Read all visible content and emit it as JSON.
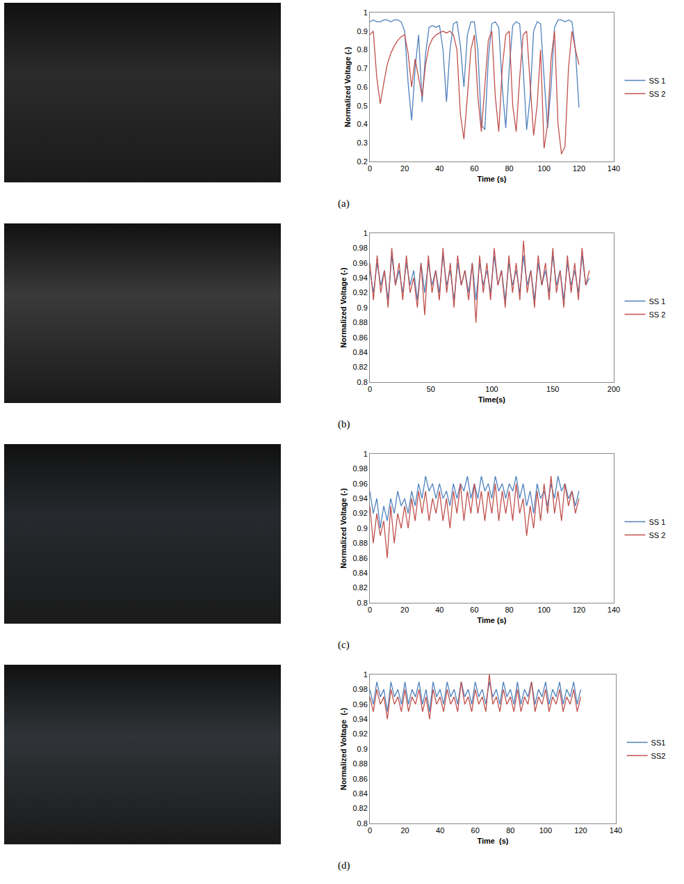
{
  "chart_data": [
    {
      "type": "line",
      "panel_label": "(a)",
      "x_label": "Time (s)",
      "y_label": "Normalized Voltage (-)",
      "legend": "right",
      "grid": false,
      "xlim": [
        0,
        140
      ],
      "xticks": [
        0,
        20,
        40,
        60,
        80,
        100,
        120,
        140
      ],
      "ylim": [
        0.2,
        1
      ],
      "yticks": [
        0.2,
        0.3,
        0.4,
        0.5,
        0.6,
        0.7,
        0.8,
        0.9,
        1
      ],
      "x": [
        0,
        2,
        4,
        6,
        8,
        10,
        12,
        14,
        16,
        18,
        20,
        22,
        24,
        26,
        28,
        30,
        32,
        34,
        36,
        38,
        40,
        42,
        44,
        46,
        48,
        50,
        52,
        54,
        56,
        58,
        60,
        62,
        64,
        66,
        68,
        70,
        72,
        74,
        76,
        78,
        80,
        82,
        84,
        86,
        88,
        90,
        92,
        94,
        96,
        98,
        100,
        102,
        104,
        106,
        108,
        110,
        112,
        114,
        116,
        118,
        120
      ],
      "series": [
        {
          "name": "SS 1",
          "color": "#4f81bd",
          "values": [
            0.95,
            0.96,
            0.95,
            0.95,
            0.96,
            0.96,
            0.95,
            0.96,
            0.96,
            0.95,
            0.9,
            0.62,
            0.42,
            0.7,
            0.88,
            0.52,
            0.78,
            0.92,
            0.93,
            0.92,
            0.93,
            0.8,
            0.52,
            0.8,
            0.94,
            0.95,
            0.82,
            0.6,
            0.88,
            0.95,
            0.95,
            0.8,
            0.4,
            0.37,
            0.75,
            0.94,
            0.95,
            0.92,
            0.6,
            0.38,
            0.7,
            0.93,
            0.95,
            0.94,
            0.7,
            0.37,
            0.55,
            0.9,
            0.95,
            0.94,
            0.65,
            0.38,
            0.6,
            0.92,
            0.96,
            0.96,
            0.95,
            0.96,
            0.95,
            0.8,
            0.49
          ]
        },
        {
          "name": "SS 2",
          "color": "#c0504d",
          "values": [
            0.88,
            0.9,
            0.65,
            0.51,
            0.62,
            0.72,
            0.78,
            0.82,
            0.85,
            0.87,
            0.88,
            0.78,
            0.6,
            0.75,
            0.65,
            0.55,
            0.72,
            0.82,
            0.86,
            0.88,
            0.89,
            0.9,
            0.89,
            0.9,
            0.88,
            0.8,
            0.45,
            0.32,
            0.55,
            0.8,
            0.88,
            0.55,
            0.36,
            0.6,
            0.85,
            0.9,
            0.55,
            0.36,
            0.7,
            0.88,
            0.9,
            0.5,
            0.36,
            0.65,
            0.88,
            0.9,
            0.6,
            0.34,
            0.5,
            0.8,
            0.27,
            0.4,
            0.75,
            0.9,
            0.4,
            0.24,
            0.28,
            0.7,
            0.9,
            0.8,
            0.72
          ]
        }
      ]
    },
    {
      "type": "line",
      "panel_label": "(b)",
      "x_label": "Time(s)",
      "y_label": "Normalized Voltage (-)",
      "legend": "right",
      "grid": false,
      "xlim": [
        0,
        200
      ],
      "xticks": [
        0,
        50,
        100,
        150,
        200
      ],
      "ylim": [
        0.8,
        1
      ],
      "yticks": [
        0.8,
        0.82,
        0.84,
        0.86,
        0.88,
        0.9,
        0.92,
        0.94,
        0.96,
        0.98,
        1
      ],
      "x": [
        0,
        3,
        6,
        9,
        12,
        15,
        18,
        21,
        24,
        27,
        30,
        33,
        36,
        39,
        42,
        45,
        48,
        51,
        54,
        57,
        60,
        63,
        66,
        69,
        72,
        75,
        78,
        81,
        84,
        87,
        90,
        93,
        96,
        99,
        102,
        105,
        108,
        111,
        114,
        117,
        120,
        123,
        126,
        129,
        132,
        135,
        138,
        141,
        144,
        147,
        150,
        153,
        156,
        159,
        162,
        165,
        168,
        171,
        174,
        177,
        180
      ],
      "series": [
        {
          "name": "SS 1",
          "color": "#4f81bd",
          "values": [
            0.95,
            0.92,
            0.96,
            0.93,
            0.95,
            0.91,
            0.97,
            0.93,
            0.95,
            0.92,
            0.96,
            0.93,
            0.95,
            0.91,
            0.96,
            0.92,
            0.96,
            0.93,
            0.95,
            0.92,
            0.97,
            0.93,
            0.95,
            0.91,
            0.96,
            0.93,
            0.95,
            0.92,
            0.96,
            0.91,
            0.96,
            0.93,
            0.95,
            0.92,
            0.97,
            0.93,
            0.95,
            0.91,
            0.96,
            0.93,
            0.95,
            0.92,
            0.97,
            0.93,
            0.95,
            0.91,
            0.96,
            0.93,
            0.95,
            0.92,
            0.97,
            0.93,
            0.95,
            0.91,
            0.96,
            0.93,
            0.95,
            0.92,
            0.97,
            0.93,
            0.94
          ]
        },
        {
          "name": "SS 2",
          "color": "#c0504d",
          "values": [
            0.96,
            0.91,
            0.97,
            0.92,
            0.95,
            0.9,
            0.98,
            0.93,
            0.96,
            0.91,
            0.97,
            0.92,
            0.94,
            0.9,
            0.96,
            0.89,
            0.97,
            0.92,
            0.95,
            0.91,
            0.98,
            0.92,
            0.96,
            0.9,
            0.97,
            0.93,
            0.95,
            0.91,
            0.96,
            0.88,
            0.97,
            0.92,
            0.96,
            0.91,
            0.98,
            0.93,
            0.95,
            0.9,
            0.97,
            0.92,
            0.96,
            0.91,
            0.99,
            0.92,
            0.95,
            0.9,
            0.97,
            0.93,
            0.96,
            0.91,
            0.98,
            0.92,
            0.95,
            0.9,
            0.97,
            0.92,
            0.96,
            0.91,
            0.98,
            0.93,
            0.95
          ]
        }
      ]
    },
    {
      "type": "line",
      "panel_label": "(c)",
      "x_label": "Time (s)",
      "y_label": "Normalized Voltage (-)",
      "legend": "right",
      "grid": false,
      "xlim": [
        0,
        140
      ],
      "xticks": [
        0,
        20,
        40,
        60,
        80,
        100,
        120,
        140
      ],
      "ylim": [
        0.8,
        1
      ],
      "yticks": [
        0.8,
        0.82,
        0.84,
        0.86,
        0.88,
        0.9,
        0.92,
        0.94,
        0.96,
        0.98,
        1
      ],
      "x": [
        0,
        2,
        4,
        6,
        8,
        10,
        12,
        14,
        16,
        18,
        20,
        22,
        24,
        26,
        28,
        30,
        32,
        34,
        36,
        38,
        40,
        42,
        44,
        46,
        48,
        50,
        52,
        54,
        56,
        58,
        60,
        62,
        64,
        66,
        68,
        70,
        72,
        74,
        76,
        78,
        80,
        82,
        84,
        86,
        88,
        90,
        92,
        94,
        96,
        98,
        100,
        102,
        104,
        106,
        108,
        110,
        112,
        114,
        116,
        118,
        120
      ],
      "series": [
        {
          "name": "SS 1",
          "color": "#4f81bd",
          "values": [
            0.95,
            0.92,
            0.94,
            0.9,
            0.93,
            0.91,
            0.94,
            0.92,
            0.95,
            0.93,
            0.94,
            0.92,
            0.95,
            0.93,
            0.96,
            0.94,
            0.97,
            0.95,
            0.96,
            0.94,
            0.96,
            0.94,
            0.95,
            0.93,
            0.96,
            0.94,
            0.96,
            0.95,
            0.97,
            0.94,
            0.96,
            0.94,
            0.97,
            0.95,
            0.96,
            0.94,
            0.97,
            0.95,
            0.96,
            0.94,
            0.96,
            0.95,
            0.97,
            0.94,
            0.96,
            0.93,
            0.95,
            0.92,
            0.96,
            0.94,
            0.95,
            0.93,
            0.96,
            0.94,
            0.97,
            0.95,
            0.96,
            0.94,
            0.95,
            0.93,
            0.95
          ]
        },
        {
          "name": "SS 2",
          "color": "#c0504d",
          "values": [
            0.93,
            0.88,
            0.92,
            0.89,
            0.91,
            0.86,
            0.93,
            0.88,
            0.92,
            0.9,
            0.93,
            0.9,
            0.94,
            0.91,
            0.95,
            0.92,
            0.95,
            0.91,
            0.94,
            0.92,
            0.95,
            0.91,
            0.94,
            0.9,
            0.95,
            0.92,
            0.96,
            0.91,
            0.95,
            0.92,
            0.96,
            0.92,
            0.95,
            0.91,
            0.95,
            0.92,
            0.96,
            0.91,
            0.95,
            0.92,
            0.95,
            0.91,
            0.96,
            0.92,
            0.94,
            0.89,
            0.93,
            0.9,
            0.95,
            0.91,
            0.96,
            0.92,
            0.97,
            0.92,
            0.95,
            0.91,
            0.96,
            0.93,
            0.95,
            0.92,
            0.94
          ]
        }
      ]
    },
    {
      "type": "line",
      "panel_label": "(d)",
      "x_label": "Time  (s)",
      "y_label": "Normalized Voltage  (-)",
      "legend": "right",
      "grid": false,
      "xlim": [
        0,
        140
      ],
      "xticks": [
        0,
        20,
        40,
        60,
        80,
        100,
        120,
        140
      ],
      "ylim": [
        0.8,
        1
      ],
      "yticks": [
        0.8,
        0.82,
        0.84,
        0.86,
        0.88,
        0.9,
        0.92,
        0.94,
        0.96,
        0.98,
        1
      ],
      "x": [
        0,
        2,
        4,
        6,
        8,
        10,
        12,
        14,
        16,
        18,
        20,
        22,
        24,
        26,
        28,
        30,
        32,
        34,
        36,
        38,
        40,
        42,
        44,
        46,
        48,
        50,
        52,
        54,
        56,
        58,
        60,
        62,
        64,
        66,
        68,
        70,
        72,
        74,
        76,
        78,
        80,
        82,
        84,
        86,
        88,
        90,
        92,
        94,
        96,
        98,
        100,
        102,
        104,
        106,
        108,
        110,
        112,
        114,
        116,
        118,
        120
      ],
      "series": [
        {
          "name": "SS1",
          "color": "#4f81bd",
          "values": [
            0.98,
            0.96,
            0.99,
            0.97,
            0.98,
            0.95,
            0.99,
            0.97,
            0.98,
            0.96,
            0.99,
            0.96,
            0.98,
            0.97,
            0.99,
            0.96,
            0.98,
            0.95,
            0.99,
            0.97,
            0.98,
            0.96,
            0.99,
            0.97,
            0.98,
            0.96,
            0.99,
            0.97,
            0.98,
            0.96,
            0.99,
            0.97,
            0.98,
            0.96,
            0.99,
            0.97,
            0.98,
            0.96,
            0.99,
            0.97,
            0.98,
            0.96,
            0.99,
            0.96,
            0.98,
            0.97,
            0.99,
            0.96,
            0.98,
            0.97,
            0.99,
            0.96,
            0.98,
            0.97,
            0.99,
            0.96,
            0.98,
            0.97,
            0.99,
            0.96,
            0.98
          ]
        },
        {
          "name": "SS2",
          "color": "#c0504d",
          "values": [
            0.97,
            0.95,
            0.98,
            0.96,
            0.97,
            0.94,
            0.98,
            0.96,
            0.97,
            0.95,
            0.98,
            0.95,
            0.97,
            0.96,
            0.98,
            0.95,
            0.97,
            0.94,
            0.98,
            0.96,
            0.97,
            0.95,
            0.98,
            0.96,
            0.97,
            0.95,
            0.99,
            0.96,
            0.97,
            0.95,
            0.98,
            0.96,
            0.97,
            0.95,
            1.0,
            0.96,
            0.97,
            0.95,
            0.98,
            0.96,
            0.97,
            0.95,
            0.98,
            0.95,
            0.97,
            0.96,
            0.99,
            0.95,
            0.97,
            0.96,
            0.98,
            0.95,
            0.97,
            0.96,
            0.98,
            0.95,
            0.97,
            0.96,
            0.98,
            0.95,
            0.97
          ]
        }
      ]
    }
  ]
}
